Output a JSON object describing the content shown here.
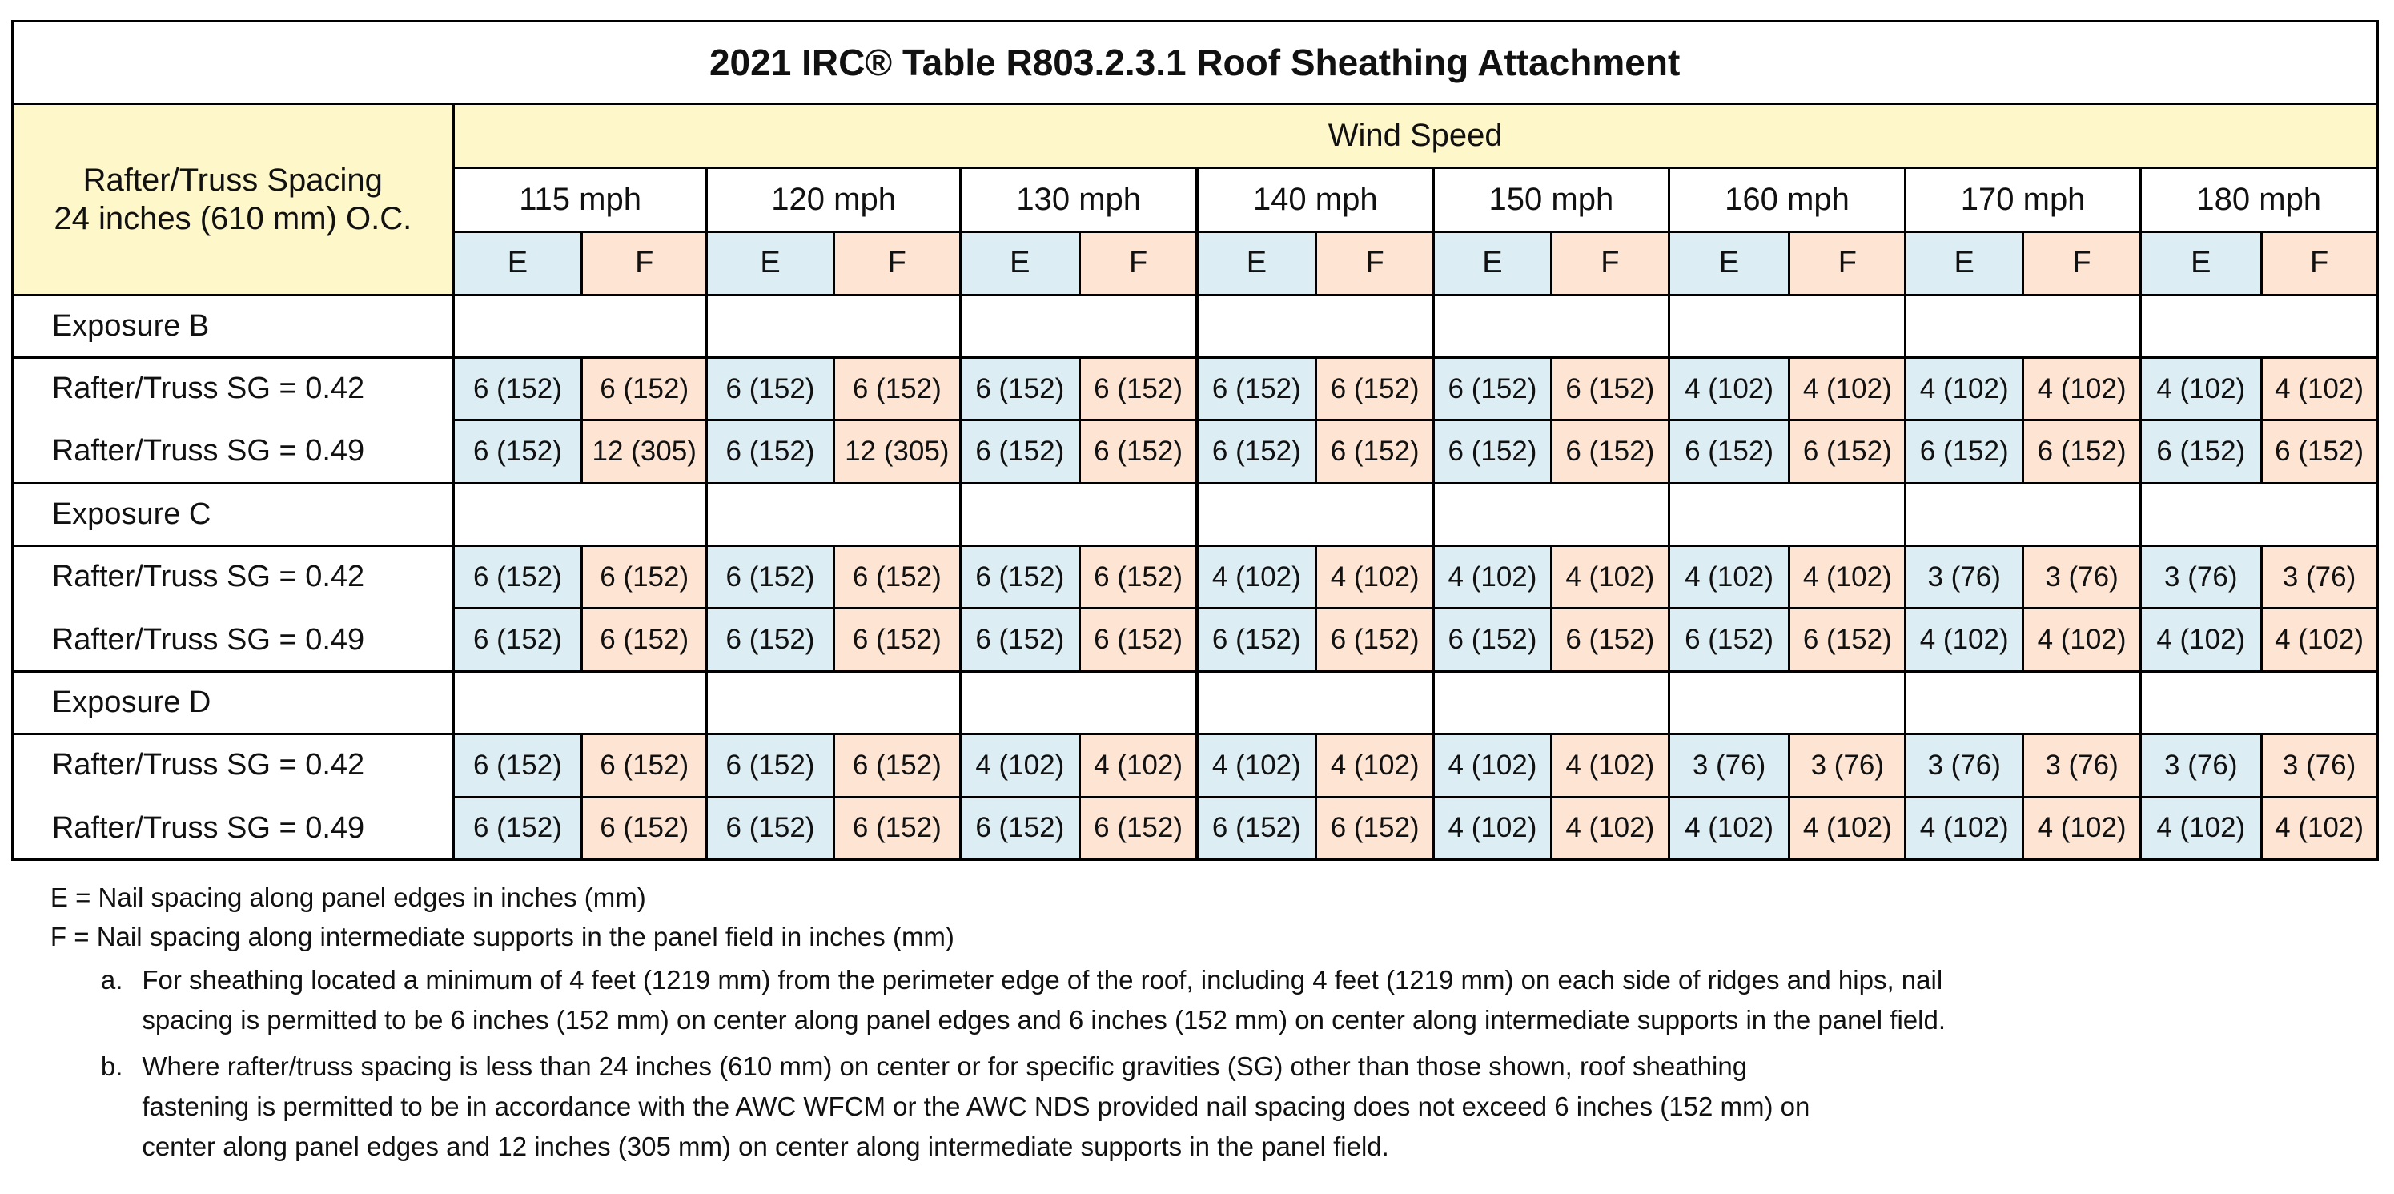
{
  "title": "2021 IRC® Table  R803.2.3.1 Roof Sheathing Attachment",
  "header": {
    "corner": [
      "Rafter/Truss Spacing",
      "24 inches (610 mm) O.C."
    ],
    "group": "Wind Speed",
    "speeds": [
      "115 mph",
      "120 mph",
      "130 mph",
      "140 mph",
      "150 mph",
      "160 mph",
      "170 mph",
      "180 mph"
    ],
    "subcolumns": [
      "E",
      "F"
    ]
  },
  "sections": [
    {
      "label": "Exposure B",
      "rows": [
        {
          "label": "Rafter/Truss SG = 0.42",
          "values": [
            "6 (152)",
            "6 (152)",
            "6 (152)",
            "6 (152)",
            "6 (152)",
            "6 (152)",
            "6 (152)",
            "6 (152)",
            "6 (152)",
            "6 (152)",
            "4 (102)",
            "4 (102)",
            "4 (102)",
            "4 (102)",
            "4 (102)",
            "4 (102)"
          ]
        },
        {
          "label": "Rafter/Truss SG = 0.49",
          "values": [
            "6 (152)",
            "12 (305)",
            "6 (152)",
            "12 (305)",
            "6 (152)",
            "6 (152)",
            "6 (152)",
            "6 (152)",
            "6 (152)",
            "6 (152)",
            "6 (152)",
            "6 (152)",
            "6 (152)",
            "6 (152)",
            "6 (152)",
            "6 (152)"
          ]
        }
      ]
    },
    {
      "label": "Exposure C",
      "rows": [
        {
          "label": "Rafter/Truss SG = 0.42",
          "values": [
            "6 (152)",
            "6 (152)",
            "6 (152)",
            "6 (152)",
            "6 (152)",
            "6 (152)",
            "4 (102)",
            "4 (102)",
            "4 (102)",
            "4 (102)",
            "4 (102)",
            "4 (102)",
            "3 (76)",
            "3 (76)",
            "3 (76)",
            "3 (76)"
          ]
        },
        {
          "label": "Rafter/Truss SG = 0.49",
          "values": [
            "6 (152)",
            "6 (152)",
            "6 (152)",
            "6 (152)",
            "6 (152)",
            "6 (152)",
            "6 (152)",
            "6 (152)",
            "6 (152)",
            "6 (152)",
            "6 (152)",
            "6 (152)",
            "4 (102)",
            "4 (102)",
            "4 (102)",
            "4 (102)"
          ]
        }
      ]
    },
    {
      "label": "Exposure D",
      "rows": [
        {
          "label": "Rafter/Truss SG = 0.42",
          "values": [
            "6 (152)",
            "6 (152)",
            "6 (152)",
            "6 (152)",
            "4 (102)",
            "4 (102)",
            "4 (102)",
            "4 (102)",
            "4 (102)",
            "4 (102)",
            "3 (76)",
            "3 (76)",
            "3 (76)",
            "3 (76)",
            "3 (76)",
            "3 (76)"
          ]
        },
        {
          "label": "Rafter/Truss SG = 0.49",
          "values": [
            "6 (152)",
            "6 (152)",
            "6 (152)",
            "6 (152)",
            "6 (152)",
            "6 (152)",
            "6 (152)",
            "6 (152)",
            "4 (102)",
            "4 (102)",
            "4 (102)",
            "4 (102)",
            "4 (102)",
            "4 (102)",
            "4 (102)",
            "4 (102)"
          ]
        }
      ]
    }
  ],
  "notes": {
    "legend": [
      "E = Nail spacing along panel edges in inches (mm)",
      "F = Nail spacing along intermediate supports in the panel field in inches (mm)"
    ],
    "footnotes": [
      {
        "marker": "a.",
        "lines": [
          "For sheathing located a minimum of 4 feet (1219 mm) from the perimeter edge of the roof, including 4 feet (1219 mm) on each side of ridges and hips, nail",
          "spacing is permitted to be 6 inches (152 mm) on center along panel edges and 6 inches (152 mm) on center along intermediate supports in the panel field."
        ]
      },
      {
        "marker": "b.",
        "lines": [
          "Where rafter/truss spacing is less than 24 inches (610 mm) on center or for specific gravities (SG) other than those shown, roof sheathing",
          "fastening is permitted to be in accordance with the AWC WFCM or the AWC NDS provided nail spacing does not exceed 6 inches (152 mm) on",
          "center along panel edges and 12 inches (305 mm) on center along intermediate supports in the panel field."
        ]
      }
    ]
  }
}
